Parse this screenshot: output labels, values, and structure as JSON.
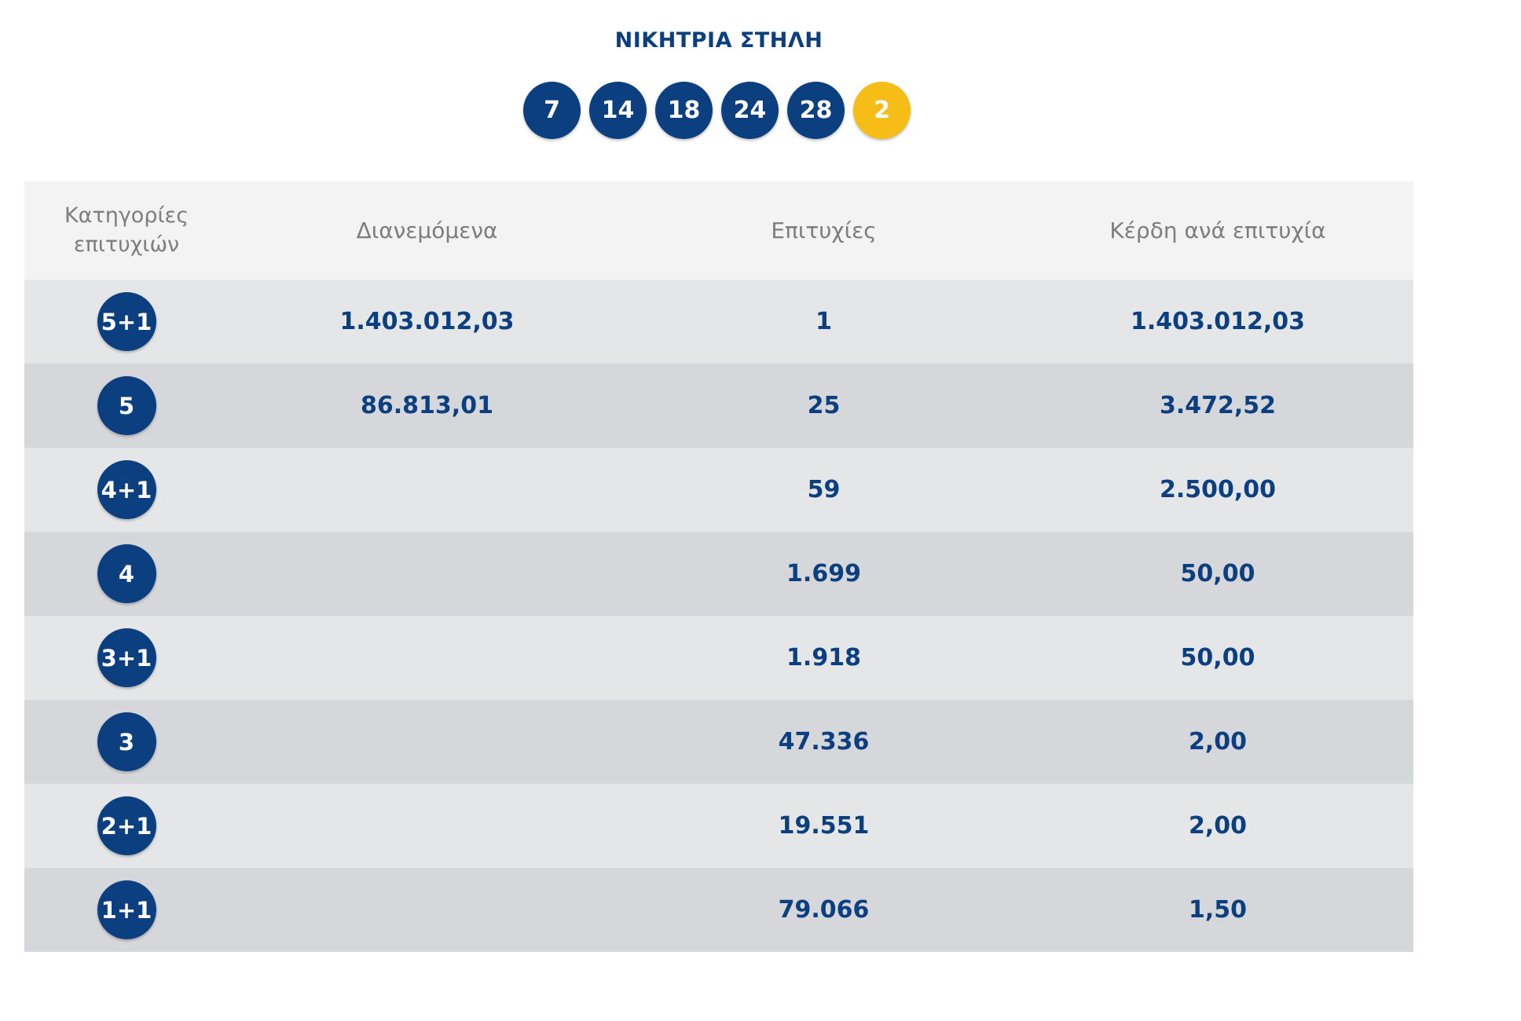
{
  "title": "ΝΙΚΗΤΡΙΑ ΣΤΗΛΗ",
  "winning_numbers": [
    "7",
    "14",
    "18",
    "24",
    "28"
  ],
  "bonus_number": "2",
  "colors": {
    "ball": "#0b3f80",
    "bonus_ball": "#f6bd16",
    "text": "#0b3f80",
    "header_text": "#7d7d7d"
  },
  "table": {
    "headers": {
      "category": "Κατηγορίες επιτυχιών",
      "distributed": "Διανεμόμενα",
      "wins": "Επιτυχίες",
      "prize": "Κέρδη ανά επιτυχία"
    },
    "rows": [
      {
        "category": "5+1",
        "distributed": "1.403.012,03",
        "wins": "1",
        "prize": "1.403.012,03"
      },
      {
        "category": "5",
        "distributed": "86.813,01",
        "wins": "25",
        "prize": "3.472,52"
      },
      {
        "category": "4+1",
        "distributed": "",
        "wins": "59",
        "prize": "2.500,00"
      },
      {
        "category": "4",
        "distributed": "",
        "wins": "1.699",
        "prize": "50,00"
      },
      {
        "category": "3+1",
        "distributed": "",
        "wins": "1.918",
        "prize": "50,00"
      },
      {
        "category": "3",
        "distributed": "",
        "wins": "47.336",
        "prize": "2,00"
      },
      {
        "category": "2+1",
        "distributed": "",
        "wins": "19.551",
        "prize": "2,00"
      },
      {
        "category": "1+1",
        "distributed": "",
        "wins": "79.066",
        "prize": "1,50"
      }
    ]
  }
}
